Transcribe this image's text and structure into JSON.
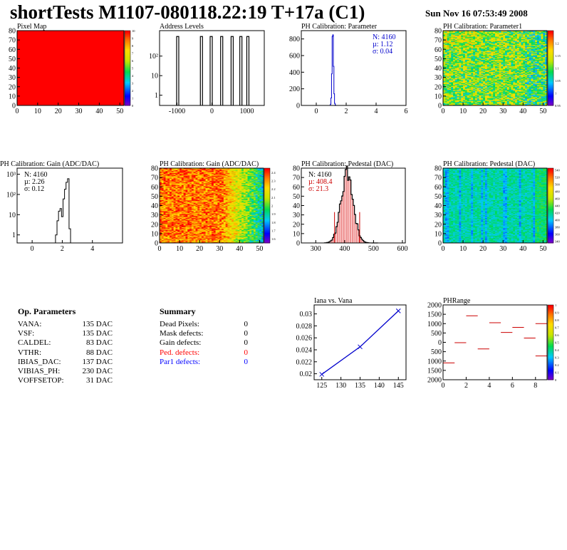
{
  "header": {
    "title": "shortTests M1107-080118.22:19 T+17a (C1)",
    "date": "Sun Nov 16 07:53:49 2008"
  },
  "chart_data": [
    {
      "id": "pixel-map",
      "type": "heatmap",
      "title": "Pixel Map",
      "xlim": [
        0,
        52
      ],
      "ylim": [
        0,
        80
      ],
      "xticks": [
        0,
        10,
        20,
        30,
        40,
        50
      ],
      "yticks": [
        0,
        10,
        20,
        30,
        40,
        50,
        60,
        70,
        80
      ],
      "uniform_value": 10,
      "colorbar": {
        "min": 0,
        "max": 10,
        "ticks": [
          "0",
          "1",
          "2",
          "3",
          "4",
          "5",
          "6",
          "7",
          "8",
          "9",
          "10"
        ]
      }
    },
    {
      "id": "address-levels",
      "type": "bar",
      "title": "Address Levels",
      "xlim": [
        -1500,
        1500
      ],
      "ylog": true,
      "ylim": [
        0.3,
        2000
      ],
      "xticks": [
        -1000,
        0,
        1000
      ],
      "ytick_labels": [
        "1",
        "10",
        "10²"
      ],
      "ytick_values": [
        1,
        10,
        100
      ],
      "peaks": [
        -980,
        -300,
        -20,
        280,
        580,
        830,
        1030
      ],
      "peak_height": 1000
    },
    {
      "id": "ph-parameter",
      "type": "bar",
      "title": "PH Calibration: Parameter",
      "xlim": [
        -1,
        6
      ],
      "ylim": [
        0,
        900
      ],
      "xticks": [
        0,
        2,
        4,
        6
      ],
      "yticks": [
        0,
        200,
        400,
        600,
        800
      ],
      "bins": {
        "x": [
          0.96,
          1.0,
          1.04,
          1.08,
          1.12,
          1.16,
          1.2,
          1.24,
          1.28
        ],
        "y": [
          15,
          90,
          380,
          830,
          850,
          470,
          140,
          25,
          5
        ]
      },
      "stats": [
        "N: 4160",
        "µ: 1.12",
        "σ: 0.04"
      ],
      "stats_color": "#0000cc"
    },
    {
      "id": "ph-parameter1",
      "type": "heatmap",
      "title": "PH Calibration: Parameter1",
      "xlim": [
        0,
        52
      ],
      "ylim": [
        0,
        80
      ],
      "xticks": [
        0,
        10,
        20,
        30,
        40,
        50
      ],
      "yticks": [
        0,
        10,
        20,
        30,
        40,
        50,
        60,
        70,
        80
      ],
      "colorbar": {
        "min": 0.95,
        "max": 1.25,
        "ticks": [
          "0.95",
          "1",
          "1.05",
          "1.1",
          "1.15",
          "1.2"
        ]
      }
    },
    {
      "id": "gain-hist",
      "type": "line",
      "title": "PH Calibration: Gain (ADC/DAC)",
      "xlim": [
        -1,
        6
      ],
      "ylog": true,
      "ylim": [
        0.4,
        2000
      ],
      "xticks": [
        0,
        2,
        4
      ],
      "ytick_labels": [
        "1",
        "10",
        "10²",
        "10³"
      ],
      "ytick_values": [
        1,
        10,
        100,
        1000
      ],
      "bins": {
        "x": [
          1.6,
          1.7,
          1.8,
          1.9,
          2.0,
          2.1,
          2.2,
          2.3,
          2.4,
          2.5
        ],
        "y": [
          1,
          5,
          15,
          20,
          8,
          60,
          180,
          400,
          600,
          2
        ]
      },
      "stats": [
        "N: 4160",
        "µ: 2.26",
        "σ: 0.12"
      ],
      "stats_color": "#000000"
    },
    {
      "id": "gain-map",
      "type": "heatmap",
      "title": "PH Calibration: Gain (ADC/DAC)",
      "xlim": [
        0,
        52
      ],
      "ylim": [
        0,
        80
      ],
      "xticks": [
        0,
        10,
        20,
        30,
        40,
        50
      ],
      "yticks": [
        0,
        10,
        20,
        30,
        40,
        50,
        60,
        70,
        80
      ],
      "colorbar": {
        "min": 1.55,
        "max": 2.45,
        "ticks": [
          "1.6",
          "1.7",
          "1.8",
          "1.9",
          "2",
          "2.1",
          "2.2",
          "2.3",
          "2.4"
        ]
      }
    },
    {
      "id": "pedestal-hist",
      "type": "bar",
      "title": "PH Calibration: Pedestal (DAC)",
      "xlim": [
        250,
        610
      ],
      "ylim": [
        0,
        80
      ],
      "xticks": [
        300,
        400,
        500,
        600
      ],
      "yticks": [
        0,
        10,
        20,
        30,
        40,
        50,
        60,
        70,
        80
      ],
      "mean": 408.4,
      "sigma": 21.3,
      "n": 4160,
      "cut_lines": [
        365,
        452
      ],
      "stats": [
        "N: 4160",
        "µ: 408.4",
        "σ: 21.3"
      ],
      "stats_color": "#cc0000"
    },
    {
      "id": "pedestal-map",
      "type": "heatmap",
      "title": "PH Calibration: Pedestal (DAC)",
      "xlim": [
        0,
        52
      ],
      "ylim": [
        0,
        80
      ],
      "xticks": [
        0,
        10,
        20,
        30,
        40,
        50
      ],
      "yticks": [
        0,
        10,
        20,
        30,
        40,
        50,
        60,
        70,
        80
      ],
      "colorbar": {
        "min": 335,
        "max": 545,
        "ticks": [
          "340",
          "360",
          "380",
          "400",
          "420",
          "440",
          "460",
          "480",
          "500",
          "520",
          "540"
        ]
      }
    },
    {
      "id": "iana-vana",
      "type": "line",
      "title": "Iana vs. Vana",
      "xlim": [
        123,
        147
      ],
      "ylim": [
        0.019,
        0.0315
      ],
      "xticks": [
        125,
        130,
        135,
        140,
        145
      ],
      "yticks": [
        0.02,
        0.022,
        0.024,
        0.026,
        0.028,
        0.03
      ],
      "x": [
        125,
        135,
        145
      ],
      "y": [
        0.0199,
        0.0245,
        0.0305
      ]
    },
    {
      "id": "phrange",
      "type": "scatter",
      "title": "PHRange",
      "xlim": [
        0,
        9
      ],
      "ylim": [
        -2000,
        2000
      ],
      "xticks": [
        0,
        2,
        4,
        6,
        8
      ],
      "yticks": [
        -2000,
        -1500,
        -1000,
        -500,
        0,
        500,
        1000,
        1500,
        2000
      ],
      "ytick_labels": [
        "2000",
        "1500",
        "1000",
        "500",
        "0",
        "500",
        "1000",
        "1500",
        "2000"
      ],
      "x": [
        0.5,
        1.5,
        2.5,
        3.5,
        4.5,
        5.5,
        6.5,
        7.5,
        8.5
      ],
      "y": [
        -1100,
        -20,
        1420,
        -350,
        1050,
        530,
        800,
        230,
        1000
      ],
      "extra_x": [
        8.5
      ],
      "extra_y": [
        -730
      ],
      "colorbar": {
        "min": 0,
        "max": 1,
        "ticks": [
          "0",
          "0.1",
          "0.2",
          "0.3",
          "0.4",
          "0.5",
          "0.6",
          "0.7",
          "0.8",
          "0.9",
          "1"
        ]
      }
    }
  ],
  "op_params": {
    "title": "Op. Parameters",
    "rows": [
      {
        "name": "VANA:",
        "value": "135 DAC"
      },
      {
        "name": "VSF:",
        "value": "135 DAC"
      },
      {
        "name": "CALDEL:",
        "value": "83 DAC"
      },
      {
        "name": "VTHR:",
        "value": "88 DAC"
      },
      {
        "name": "IBIAS_DAC:",
        "value": "137 DAC"
      },
      {
        "name": "VIBIAS_PH:",
        "value": "230 DAC"
      },
      {
        "name": "VOFFSETOP:",
        "value": "31 DAC"
      }
    ]
  },
  "summary": {
    "title": "Summary",
    "rows": [
      {
        "name": "Dead Pixels:",
        "value": "0",
        "color": "#000000"
      },
      {
        "name": "Mask defects:",
        "value": "0",
        "color": "#000000"
      },
      {
        "name": "Gain defects:",
        "value": "0",
        "color": "#000000"
      },
      {
        "name": "Ped. defects:",
        "value": "0",
        "color": "#ff0000"
      },
      {
        "name": "Par1 defects:",
        "value": "0",
        "color": "#0000ff"
      }
    ]
  }
}
